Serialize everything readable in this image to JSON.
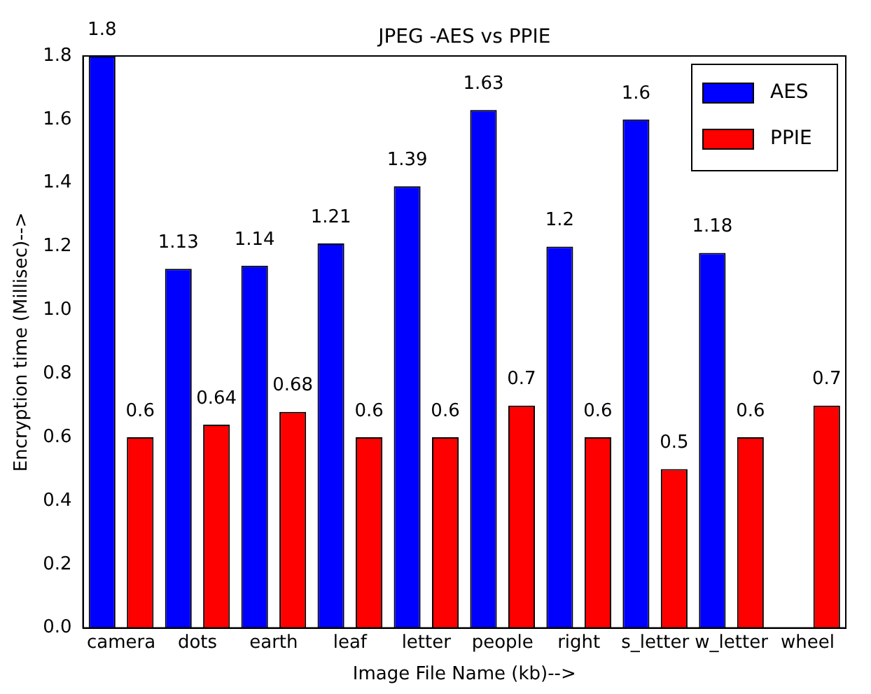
{
  "chart_data": {
    "type": "bar",
    "title": "JPEG -AES vs PPIE",
    "xlabel": "Image File Name (kb)-->",
    "ylabel": "Encryption time (Millisec)-->",
    "categories": [
      "camera",
      "dots",
      "earth",
      "leaf",
      "letter",
      "people",
      "right",
      "s_letter",
      "w_letter",
      "wheel"
    ],
    "series": [
      {
        "name": "AES",
        "color": "#0000ff",
        "values": [
          1.8,
          1.13,
          1.14,
          1.21,
          1.39,
          1.63,
          1.2,
          1.6,
          1.18,
          null
        ],
        "value_labels": [
          "1.8",
          "1.13",
          "1.14",
          "1.21",
          "1.39",
          "1.63",
          "1.2",
          "1.6",
          "1.18",
          null
        ]
      },
      {
        "name": "PPIE",
        "color": "#ff0000",
        "values": [
          0.6,
          0.64,
          0.68,
          0.6,
          0.6,
          0.7,
          0.6,
          0.5,
          0.6,
          0.7
        ],
        "value_labels": [
          "0.6",
          "0.64",
          "0.68",
          "0.6",
          "0.6",
          "0.7",
          "0.6",
          "0.5",
          "0.6",
          "0.7"
        ]
      }
    ],
    "ylim": [
      0,
      1.8
    ],
    "yticks": [
      {
        "value": 0,
        "label": "0.0"
      },
      {
        "value": 0.2,
        "label": "0.2"
      },
      {
        "value": 0.4,
        "label": "0.4"
      },
      {
        "value": 0.6,
        "label": "0.6"
      },
      {
        "value": 0.8,
        "label": "0.8"
      },
      {
        "value": 1,
        "label": "1.0"
      },
      {
        "value": 1.2,
        "label": "1.2"
      },
      {
        "value": 1.4,
        "label": "1.4"
      },
      {
        "value": 1.6,
        "label": "1.6"
      },
      {
        "value": 1.8,
        "label": "1.8"
      }
    ],
    "grid": false,
    "legend": "top right"
  }
}
